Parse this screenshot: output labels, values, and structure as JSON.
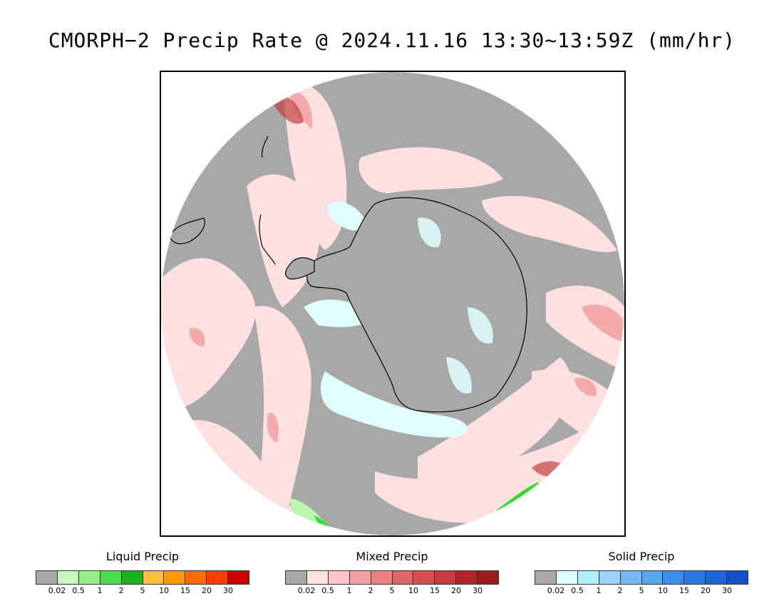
{
  "title": "CMORPH−2 Precip Rate @ 2024.11.16 13:30~13:59Z (mm/hr)",
  "colors": {
    "no_precip_gray": "#a8a8a8",
    "mixed_light": "#ffe0e0",
    "mixed_mid": "#f4a9aa",
    "mixed_dark": "#c04040",
    "solid_light": "#e0ffff",
    "liquid_light": "#b8f8b0",
    "liquid_mid": "#33dd33",
    "coast": "#000000"
  },
  "legends": [
    {
      "title": "Liquid Precip",
      "ticks": [
        "0.02",
        "0.5",
        "1",
        "2",
        "5",
        "10",
        "15",
        "20",
        "30"
      ],
      "colors": [
        "#a8a8a8",
        "#c8f8c0",
        "#96ee88",
        "#4cdd4c",
        "#1cb11c",
        "#ffc040",
        "#ff9a00",
        "#ff6a00",
        "#ff3c00",
        "#cc0000"
      ]
    },
    {
      "title": "Mixed Precip",
      "ticks": [
        "0.02",
        "0.5",
        "1",
        "2",
        "5",
        "10",
        "15",
        "20",
        "30"
      ],
      "colors": [
        "#a8a8a8",
        "#ffe2e2",
        "#ffc5c8",
        "#f4a1a6",
        "#ea8284",
        "#df6668",
        "#d54e50",
        "#c63c3e",
        "#b22428",
        "#9a1a1e"
      ]
    },
    {
      "title": "Solid Precip",
      "ticks": [
        "0.02",
        "0.5",
        "1",
        "2",
        "5",
        "10",
        "15",
        "20",
        "30"
      ],
      "colors": [
        "#a8a8a8",
        "#e0ffff",
        "#b4eefa",
        "#9ad2fa",
        "#78b8f2",
        "#5aa6ec",
        "#3c8ee6",
        "#2a78e0",
        "#1e64d8",
        "#1450c8"
      ]
    }
  ]
}
